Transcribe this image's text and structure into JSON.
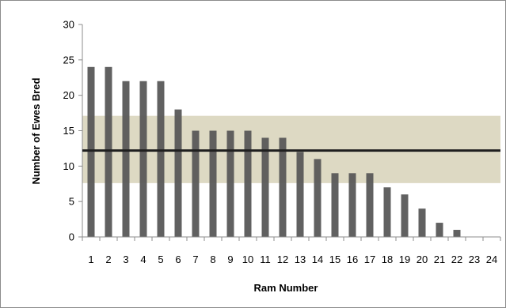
{
  "chart_data": {
    "type": "bar",
    "title": "",
    "xlabel": "Ram Number",
    "ylabel": "Number of Ewes Bred",
    "categories": [
      "1",
      "2",
      "3",
      "4",
      "5",
      "6",
      "7",
      "8",
      "9",
      "10",
      "11",
      "12",
      "13",
      "14",
      "15",
      "16",
      "17",
      "18",
      "19",
      "20",
      "21",
      "22",
      "23",
      "24"
    ],
    "values": [
      24,
      24,
      22,
      22,
      22,
      18,
      15,
      15,
      15,
      15,
      14,
      14,
      12,
      11,
      9,
      9,
      9,
      7,
      6,
      4,
      2,
      1,
      0,
      0
    ],
    "ylim": [
      0,
      30
    ],
    "yticks": [
      0,
      5,
      10,
      15,
      20,
      25,
      30
    ],
    "grid": false,
    "legend": "none",
    "reference_line": {
      "value": 12.2,
      "kind": "mean"
    },
    "reference_band": {
      "low": 7.6,
      "high": 17.1
    },
    "colors": {
      "bar": "#595959",
      "reference_line": "#1f1f1f",
      "band": "#ddd9c3",
      "axis": "#8c8c8c",
      "frame": "#8c8c8c"
    }
  }
}
